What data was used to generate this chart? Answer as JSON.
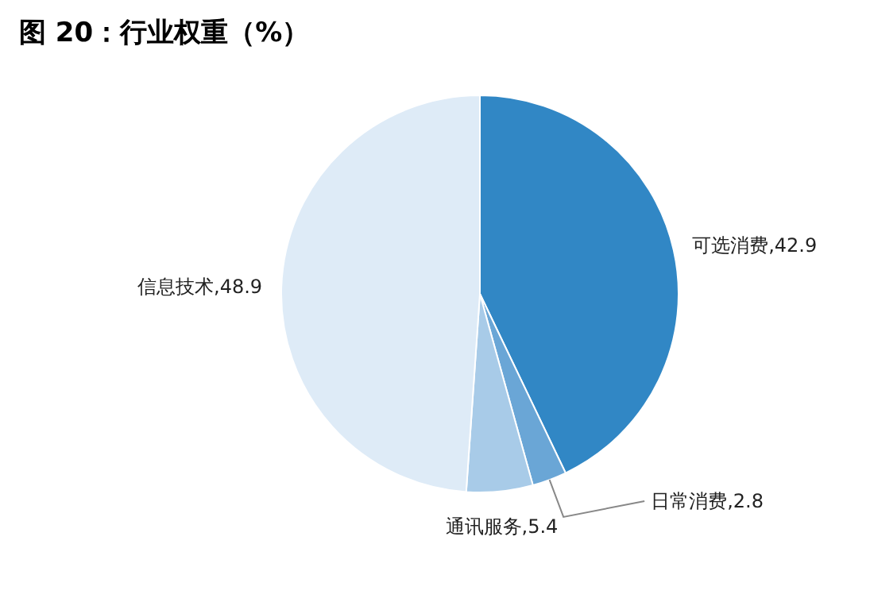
{
  "chart_data": {
    "type": "pie",
    "title": "图 20：行业权重（%）",
    "categories": [
      "可选消费",
      "日常消费",
      "通讯服务",
      "信息技术"
    ],
    "values": [
      42.9,
      2.8,
      5.4,
      48.9
    ],
    "value_labels": [
      ",42.9",
      ",2.8",
      ",5.4",
      ",48.9"
    ],
    "colors": [
      "#3187c5",
      "#6aa6d6",
      "#a8cbe8",
      "#deebf7"
    ]
  }
}
